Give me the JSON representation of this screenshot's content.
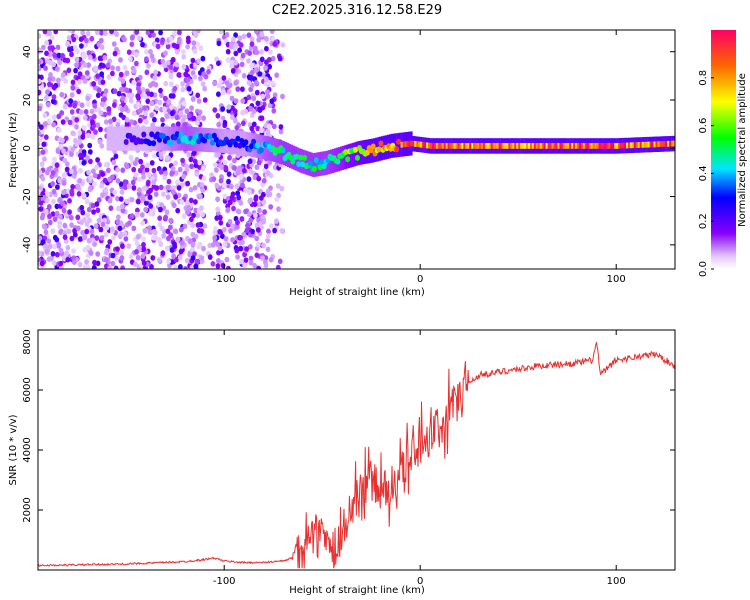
{
  "title": "C2E2.2025.316.12.58.E29",
  "chart_data": [
    {
      "type": "heatmap",
      "xlabel": "Height of straight line (km)",
      "ylabel": "Frequency (Hz)",
      "xlim": [
        -195,
        130
      ],
      "ylim": [
        -50,
        49
      ],
      "xticks": [
        -100,
        0,
        100
      ],
      "xtick_labels": [
        "-100",
        "0",
        "100"
      ],
      "yticks": [
        -40,
        -20,
        0,
        20,
        40
      ],
      "ytick_labels": [
        "-40",
        "-20",
        "0",
        "20",
        "40"
      ],
      "colorbar": {
        "label": "Normalized spectral amplitude",
        "range": [
          0,
          1
        ],
        "ticks": [
          0,
          0.2,
          0.4,
          0.6,
          0.8
        ],
        "tick_labels": [
          "0.0",
          "0.2",
          "0.4",
          "0.6",
          "0.8"
        ]
      },
      "signal_track": {
        "height_km": [
          -140,
          -120,
          -100,
          -90,
          -78,
          -70,
          -62,
          -55,
          -48,
          -40,
          -32,
          -25,
          -15,
          -5,
          5,
          30,
          60,
          100,
          130
        ],
        "frequency_hz": [
          4,
          4,
          3,
          2,
          0,
          -2,
          -5,
          -7,
          -6,
          -4,
          -2,
          -1,
          1,
          2,
          1,
          1,
          1,
          1,
          2
        ],
        "amplitude": [
          0.25,
          0.45,
          0.3,
          0.3,
          0.45,
          0.5,
          0.5,
          0.5,
          0.5,
          0.55,
          0.7,
          0.8,
          0.85,
          0.9,
          0.9,
          0.9,
          0.9,
          0.95,
          0.9
        ]
      },
      "noise_region_km": [
        -195,
        -70
      ],
      "noise_gap_km": [
        -110,
        -105
      ]
    },
    {
      "type": "line",
      "xlabel": "Height of straight line (km)",
      "ylabel": "SNR (10 * v/v)",
      "xlim": [
        -195,
        130
      ],
      "ylim": [
        0,
        8000
      ],
      "xticks": [
        -100,
        0,
        100
      ],
      "xtick_labels": [
        "-100",
        "0",
        "100"
      ],
      "yticks": [
        2000,
        4000,
        6000,
        8000
      ],
      "ytick_labels": [
        "2000",
        "4000",
        "6000",
        "8000"
      ],
      "series": [
        {
          "name": "SNR",
          "color": "#e83030",
          "x": [
            -195,
            -150,
            -120,
            -110,
            -105,
            -100,
            -90,
            -80,
            -70,
            -65,
            -60,
            -55,
            -50,
            -45,
            -40,
            -35,
            -30,
            -25,
            -20,
            -15,
            -10,
            -5,
            0,
            5,
            10,
            15,
            20,
            25,
            30,
            40,
            50,
            60,
            70,
            80,
            88,
            90,
            92,
            100,
            110,
            120,
            125,
            130
          ],
          "y": [
            150,
            200,
            280,
            350,
            400,
            300,
            250,
            250,
            300,
            400,
            700,
            1500,
            1300,
            600,
            1000,
            2000,
            2800,
            3000,
            2600,
            2800,
            3200,
            3600,
            4200,
            4500,
            4800,
            5300,
            5800,
            6200,
            6500,
            6600,
            6700,
            6800,
            6850,
            6900,
            7000,
            7600,
            6500,
            7000,
            7100,
            7200,
            7000,
            6800
          ]
        }
      ]
    }
  ]
}
